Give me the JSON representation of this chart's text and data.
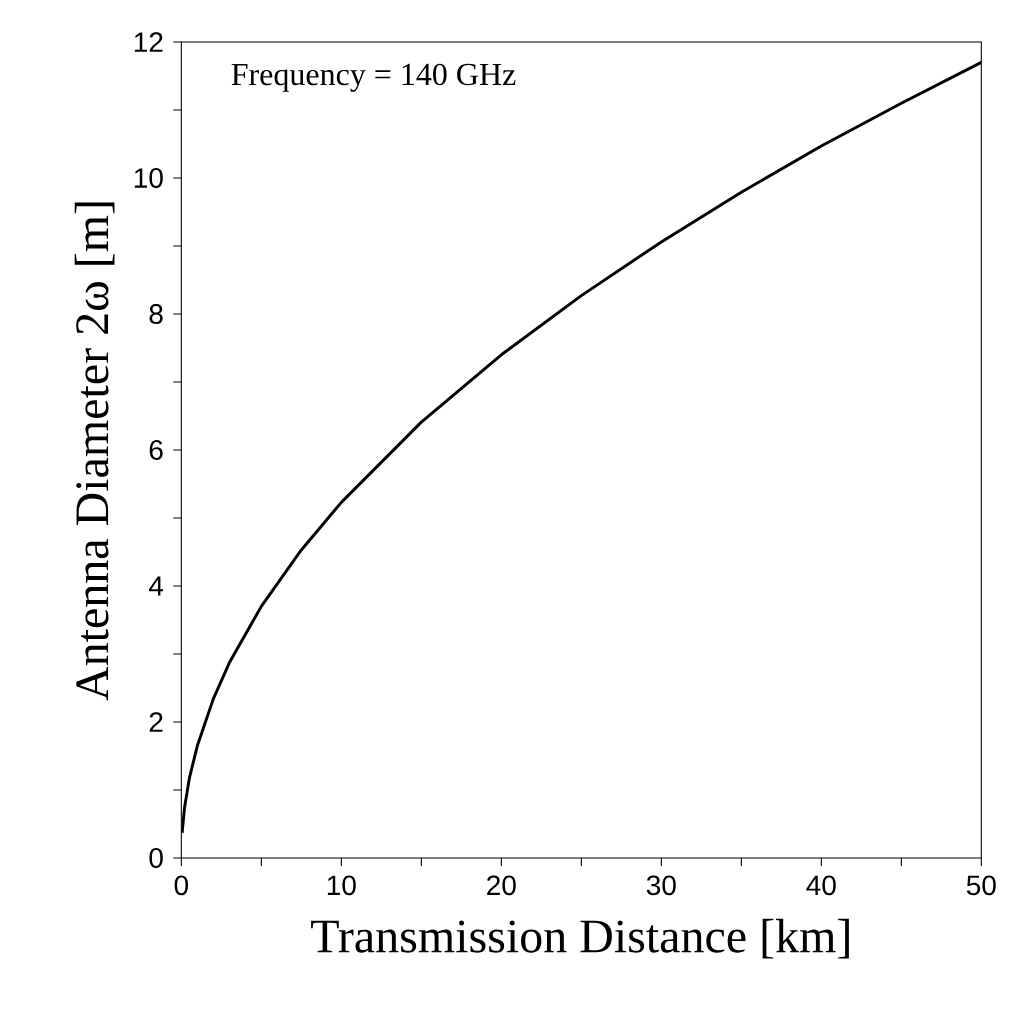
{
  "chart_data": {
    "type": "line",
    "xlabel": "Transmission Distance   [km]",
    "ylabel": "Antenna Diameter   2ω [m]",
    "annotations": [
      "Frequency = 140 GHz"
    ],
    "x": [
      0.05,
      0.2,
      0.5,
      1,
      2,
      3,
      5,
      7.5,
      10,
      15,
      20,
      25,
      30,
      35,
      40,
      45,
      50
    ],
    "series": [
      {
        "color": "#000000",
        "values": [
          0.37,
          0.74,
          1.17,
          1.65,
          2.34,
          2.87,
          3.7,
          4.53,
          5.23,
          6.41,
          7.4,
          8.27,
          9.06,
          9.79,
          10.47,
          11.1,
          11.7
        ]
      }
    ],
    "xlim": [
      0,
      50
    ],
    "ylim": [
      0,
      12
    ],
    "xticks": [
      0,
      {
        "value": 5,
        "label": null
      },
      10,
      {
        "value": 15,
        "label": null
      },
      20,
      {
        "value": 25,
        "label": null
      },
      30,
      {
        "value": 35,
        "label": null
      },
      40,
      {
        "value": 45,
        "label": null
      },
      50
    ],
    "yticks": [
      0,
      {
        "value": 1,
        "label": null
      },
      2,
      {
        "value": 3,
        "label": null
      },
      4,
      {
        "value": 5,
        "label": null
      },
      6,
      {
        "value": 7,
        "label": null
      },
      8,
      {
        "value": 9,
        "label": null
      },
      10,
      {
        "value": 11,
        "label": null
      },
      12
    ],
    "marker": "none",
    "line_style": "solid"
  }
}
